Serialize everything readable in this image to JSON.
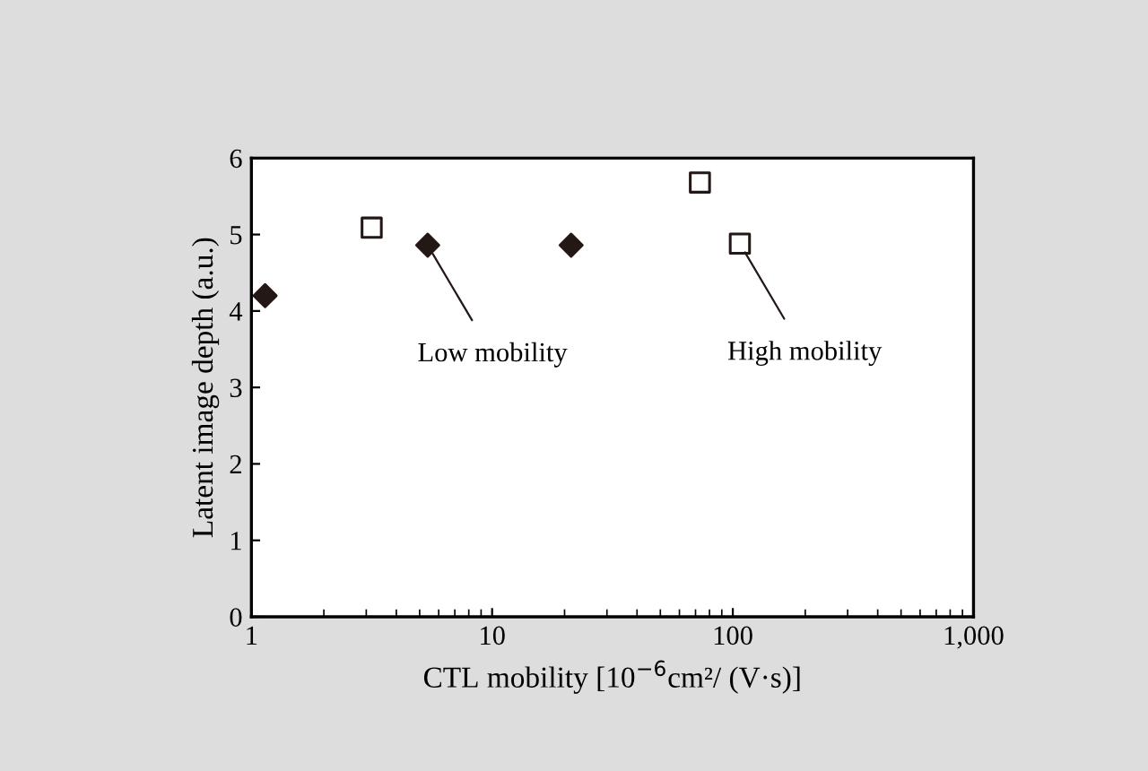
{
  "chart_data": {
    "type": "scatter",
    "xlabel": "CTL mobility [10$^{−6}$cm²/ (V·s)]",
    "ylabel": "Latent image depth (a.u.)",
    "log": "x",
    "xlim": [
      1,
      1000
    ],
    "xticks": [
      1,
      10,
      100,
      {
        "value": 1000,
        "label": "1,000"
      }
    ],
    "ylim": [
      0,
      6
    ],
    "yticks": [
      0,
      1,
      2,
      3,
      4,
      5,
      6
    ],
    "grid": false,
    "legend": false,
    "series": [
      {
        "color": "#231815",
        "marker": "diamond",
        "x": [
          1.14,
          5.4,
          21.3
        ],
        "values": [
          4.2,
          4.86,
          4.86
        ]
      },
      {
        "color": "#231815",
        "marker": "square",
        "x": [
          3.16,
          73,
          107
        ],
        "values": [
          5.09,
          5.68,
          4.88
        ]
      }
    ],
    "annotations": [
      {
        "text": "Low mobility",
        "x": 5.4,
        "y": 4.86
      },
      {
        "text": "High mobility",
        "x": 107,
        "y": 4.88
      }
    ]
  }
}
